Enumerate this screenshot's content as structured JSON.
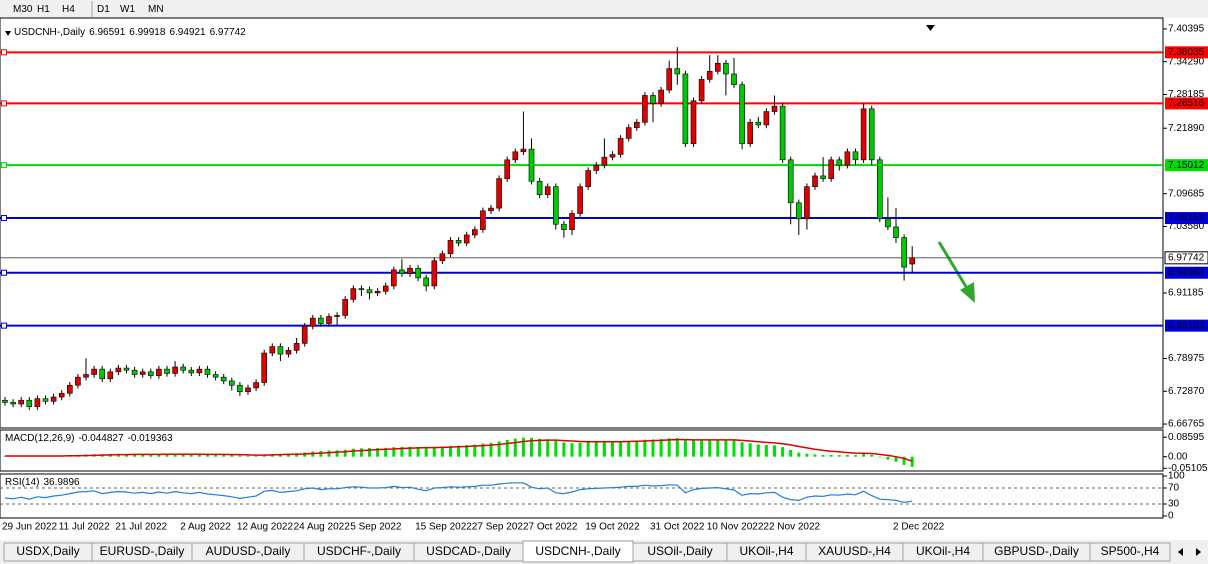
{
  "toolbar": [
    "M30",
    "H1",
    "H4",
    "D1",
    "W1",
    "MN"
  ],
  "tabs": [
    "USDX,Daily",
    "EURUSD-,Daily",
    "AUDUSD-,Daily",
    "USDCHF-,Daily",
    "USDCAD-,Daily",
    "USDCNH-,Daily",
    "USOil-,Daily",
    "UKOil-,H4",
    "XAUUSD-,H4",
    "UKOil-,H4",
    "GBPUSD-,Daily",
    "SP500-,H4"
  ],
  "active_tab": 5,
  "chart_data": [
    {
      "type": "candlestick",
      "title": "USDCNH-,Daily",
      "bull_color": "#e00000",
      "bear_color": "#00c800",
      "x": [
        "29 Jun 2022",
        null,
        null,
        null,
        null,
        null,
        null,
        "11 Jul 2022",
        null,
        null,
        null,
        null,
        null,
        null,
        "21 Jul 2022",
        null,
        null,
        null,
        null,
        null,
        null,
        null,
        "2 Aug 2022",
        null,
        null,
        null,
        null,
        null,
        null,
        "12 Aug 2022",
        null,
        null,
        null,
        null,
        null,
        null,
        "24 Aug 2022",
        null,
        null,
        null,
        null,
        null,
        null,
        "5 Sep 2022",
        null,
        null,
        null,
        null,
        null,
        null,
        null,
        "15 Sep 2022",
        null,
        null,
        null,
        null,
        null,
        null,
        "27 Sep 2022",
        null,
        null,
        null,
        null,
        null,
        null,
        "7 Oct 2022",
        null,
        null,
        null,
        null,
        null,
        null,
        "19 Oct 2022",
        null,
        null,
        null,
        null,
        null,
        null,
        null,
        "31 Oct 2022",
        null,
        null,
        null,
        null,
        null,
        null,
        "10 Nov 2022",
        null,
        null,
        null,
        null,
        null,
        null,
        "22 Nov 2022",
        null,
        null,
        null,
        null,
        null,
        null,
        null,
        null,
        null,
        null,
        null,
        null,
        null,
        null,
        null,
        "2 Dec 2022",
        null,
        null
      ],
      "open": [
        6.712,
        6.708,
        6.705,
        6.712,
        6.7,
        6.715,
        6.71,
        6.718,
        6.725,
        6.74,
        6.755,
        6.76,
        6.77,
        6.752,
        6.765,
        6.772,
        6.768,
        6.76,
        6.765,
        6.758,
        6.77,
        6.762,
        6.774,
        6.768,
        6.763,
        6.77,
        6.76,
        6.755,
        6.748,
        6.74,
        6.728,
        6.735,
        6.745,
        6.8,
        6.812,
        6.798,
        6.805,
        6.818,
        6.85,
        6.865,
        6.855,
        6.868,
        6.87,
        6.9,
        6.92,
        6.918,
        6.912,
        6.915,
        6.925,
        6.955,
        6.948,
        6.958,
        6.94,
        6.925,
        6.972,
        6.985,
        7.01,
        7.005,
        7.02,
        7.03,
        7.065,
        7.07,
        7.125,
        7.16,
        7.175,
        7.18,
        7.12,
        7.095,
        7.11,
        7.04,
        7.03,
        7.06,
        7.11,
        7.14,
        7.15,
        7.165,
        7.17,
        7.2,
        7.22,
        7.23,
        7.28,
        7.265,
        7.29,
        7.33,
        7.32,
        7.19,
        7.27,
        7.31,
        7.325,
        7.34,
        7.32,
        7.3,
        7.19,
        7.23,
        7.225,
        7.25,
        7.26,
        7.16,
        7.08,
        7.05,
        7.11,
        7.13,
        7.125,
        7.16,
        7.15,
        7.175,
        7.16,
        7.255,
        7.16,
        7.05,
        7.035,
        7.015,
        6.96591
      ],
      "high": [
        6.718,
        6.714,
        6.718,
        6.718,
        6.721,
        6.721,
        6.724,
        6.731,
        6.746,
        6.761,
        6.79,
        6.776,
        6.776,
        6.771,
        6.778,
        6.778,
        6.774,
        6.771,
        6.771,
        6.776,
        6.776,
        6.785,
        6.78,
        6.774,
        6.776,
        6.776,
        6.766,
        6.761,
        6.754,
        6.746,
        6.741,
        6.751,
        6.806,
        6.818,
        6.818,
        6.811,
        6.828,
        6.856,
        6.871,
        6.871,
        6.874,
        6.876,
        6.906,
        6.926,
        6.926,
        6.924,
        6.921,
        6.931,
        6.961,
        6.975,
        6.964,
        6.964,
        6.946,
        6.978,
        6.991,
        7.016,
        7.016,
        7.026,
        7.036,
        7.071,
        7.076,
        7.131,
        7.166,
        7.181,
        7.25,
        7.2,
        7.126,
        7.116,
        7.116,
        7.046,
        7.066,
        7.116,
        7.146,
        7.156,
        7.2,
        7.176,
        7.206,
        7.226,
        7.236,
        7.286,
        7.286,
        7.296,
        7.345,
        7.37,
        7.326,
        7.276,
        7.316,
        7.355,
        7.355,
        7.346,
        7.35,
        7.306,
        7.236,
        7.24,
        7.256,
        7.28,
        7.266,
        7.166,
        7.086,
        7.116,
        7.136,
        7.165,
        7.166,
        7.166,
        7.181,
        7.181,
        7.265,
        7.261,
        7.166,
        7.09,
        7.07,
        7.021,
        6.99918
      ],
      "low": [
        6.702,
        6.699,
        6.699,
        6.694,
        6.694,
        6.704,
        6.704,
        6.712,
        6.719,
        6.734,
        6.749,
        6.754,
        6.746,
        6.746,
        6.759,
        6.762,
        6.754,
        6.754,
        6.752,
        6.752,
        6.756,
        6.756,
        6.762,
        6.757,
        6.757,
        6.754,
        6.749,
        6.742,
        6.73,
        6.72,
        6.722,
        6.729,
        6.739,
        6.794,
        6.785,
        6.792,
        6.799,
        6.812,
        6.844,
        6.849,
        6.849,
        6.85,
        6.864,
        6.894,
        6.906,
        6.9,
        6.906,
        6.909,
        6.919,
        6.942,
        6.942,
        6.934,
        6.915,
        6.919,
        6.966,
        6.979,
        6.999,
        6.999,
        7.014,
        7.024,
        7.059,
        7.064,
        7.119,
        7.154,
        7.169,
        7.114,
        7.089,
        7.089,
        7.03,
        7.015,
        7.02,
        7.054,
        7.104,
        7.134,
        7.144,
        7.159,
        7.164,
        7.194,
        7.214,
        7.224,
        7.23,
        7.259,
        7.284,
        7.3,
        7.184,
        7.184,
        7.264,
        7.304,
        7.319,
        7.28,
        7.294,
        7.18,
        7.184,
        7.219,
        7.219,
        7.244,
        7.154,
        7.04,
        7.02,
        7.03,
        7.104,
        7.119,
        7.119,
        7.14,
        7.144,
        7.15,
        7.154,
        7.15,
        7.044,
        7.029,
        7.005,
        6.935,
        6.94921
      ],
      "close": [
        6.708,
        6.705,
        6.712,
        6.7,
        6.715,
        6.71,
        6.718,
        6.725,
        6.74,
        6.755,
        6.76,
        6.77,
        6.752,
        6.765,
        6.772,
        6.768,
        6.76,
        6.765,
        6.758,
        6.77,
        6.762,
        6.774,
        6.768,
        6.763,
        6.77,
        6.76,
        6.755,
        6.748,
        6.74,
        6.728,
        6.735,
        6.745,
        6.8,
        6.812,
        6.798,
        6.805,
        6.818,
        6.85,
        6.865,
        6.855,
        6.868,
        6.87,
        6.9,
        6.92,
        6.918,
        6.912,
        6.915,
        6.925,
        6.955,
        6.948,
        6.958,
        6.94,
        6.925,
        6.972,
        6.985,
        7.01,
        7.005,
        7.02,
        7.03,
        7.065,
        7.07,
        7.125,
        7.16,
        7.175,
        7.18,
        7.12,
        7.095,
        7.11,
        7.04,
        7.03,
        7.06,
        7.11,
        7.14,
        7.15,
        7.165,
        7.17,
        7.2,
        7.22,
        7.23,
        7.28,
        7.265,
        7.29,
        7.33,
        7.32,
        7.19,
        7.27,
        7.31,
        7.325,
        7.34,
        7.32,
        7.3,
        7.19,
        7.23,
        7.225,
        7.25,
        7.26,
        7.16,
        7.08,
        7.05,
        7.11,
        7.13,
        7.125,
        7.16,
        7.15,
        7.175,
        7.16,
        7.255,
        7.16,
        7.05,
        7.035,
        7.015,
        6.96,
        6.97742
      ],
      "ylim": [
        6.6603,
        7.4243
      ],
      "yticks": [
        7.40395,
        {
          "value": 7.3429,
          "label": "7.34290"
        },
        7.28185,
        {
          "value": 7.2189,
          "label": "7.21890"
        },
        7.09685,
        {
          "value": 7.0358,
          "label": "7.03580"
        },
        6.91185,
        6.78975,
        {
          "value": 6.7287,
          "label": "6.72870"
        },
        6.66765
      ],
      "levels": [
        {
          "value": 7.36035,
          "color": "#ff0000"
        },
        {
          "value": 7.26516,
          "color": "#ff0000"
        },
        {
          "value": 7.15012,
          "color": "#00dd00"
        },
        {
          "value": 7.05152,
          "color": "#0000dd"
        },
        {
          "value": 6.94963,
          "color": "#0000dd"
        },
        {
          "value": 6.85103,
          "color": "#0000dd"
        }
      ]
    },
    {
      "type": "macd",
      "title": "MACD(12,26,9)",
      "color": "#00e000",
      "signal_color": "#e00000",
      "values": [
        0.002,
        0.002,
        0.003,
        0.002,
        0.003,
        0.003,
        0.004,
        0.005,
        0.006,
        0.008,
        0.01,
        0.011,
        0.011,
        0.012,
        0.012,
        0.012,
        0.011,
        0.011,
        0.011,
        0.011,
        0.011,
        0.011,
        0.011,
        0.01,
        0.01,
        0.01,
        0.009,
        0.008,
        0.007,
        0.005,
        0.004,
        0.004,
        0.008,
        0.011,
        0.012,
        0.013,
        0.015,
        0.019,
        0.023,
        0.025,
        0.027,
        0.028,
        0.031,
        0.035,
        0.037,
        0.038,
        0.038,
        0.039,
        0.042,
        0.043,
        0.044,
        0.043,
        0.041,
        0.043,
        0.045,
        0.048,
        0.049,
        0.051,
        0.053,
        0.058,
        0.061,
        0.067,
        0.074,
        0.08,
        0.084,
        0.083,
        0.079,
        0.077,
        0.07,
        0.063,
        0.06,
        0.061,
        0.063,
        0.064,
        0.066,
        0.066,
        0.068,
        0.07,
        0.071,
        0.075,
        0.076,
        0.078,
        0.081,
        0.082,
        0.073,
        0.072,
        0.073,
        0.074,
        0.076,
        0.075,
        0.073,
        0.064,
        0.059,
        0.054,
        0.052,
        0.05,
        0.042,
        0.03,
        0.018,
        0.013,
        0.01,
        0.008,
        0.008,
        0.007,
        0.008,
        0.007,
        0.013,
        0.008,
        -0.003,
        -0.013,
        -0.022,
        -0.036,
        -0.044827
      ],
      "signal": [
        0.003,
        0.003,
        0.003,
        0.003,
        0.003,
        0.003,
        0.003,
        0.003,
        0.004,
        0.004,
        0.005,
        0.006,
        0.007,
        0.008,
        0.009,
        0.009,
        0.01,
        0.01,
        0.01,
        0.01,
        0.011,
        0.011,
        0.011,
        0.011,
        0.011,
        0.01,
        0.01,
        0.01,
        0.009,
        0.009,
        0.008,
        0.007,
        0.007,
        0.008,
        0.009,
        0.01,
        0.011,
        0.012,
        0.014,
        0.016,
        0.018,
        0.02,
        0.022,
        0.025,
        0.027,
        0.029,
        0.031,
        0.033,
        0.034,
        0.036,
        0.038,
        0.039,
        0.04,
        0.04,
        0.041,
        0.042,
        0.044,
        0.045,
        0.047,
        0.049,
        0.051,
        0.054,
        0.058,
        0.062,
        0.067,
        0.07,
        0.072,
        0.073,
        0.073,
        0.071,
        0.069,
        0.067,
        0.066,
        0.066,
        0.066,
        0.066,
        0.066,
        0.067,
        0.068,
        0.069,
        0.071,
        0.072,
        0.074,
        0.075,
        0.075,
        0.074,
        0.074,
        0.074,
        0.074,
        0.074,
        0.074,
        0.072,
        0.069,
        0.066,
        0.063,
        0.061,
        0.057,
        0.052,
        0.045,
        0.039,
        0.033,
        0.028,
        0.024,
        0.021,
        0.018,
        0.016,
        0.015,
        0.014,
        0.01,
        0.006,
        0.0,
        -0.008,
        -0.019363
      ],
      "ylim": [
        -0.063,
        0.1176
      ],
      "yticks": [
        0.08595,
        {
          "value": 0,
          "label": "0.00"
        },
        -0.051055
      ]
    },
    {
      "type": "line",
      "title": "RSI(14)",
      "color": "#1e7fe0",
      "values": [
        45,
        43,
        47,
        42,
        48,
        46,
        50,
        52,
        56,
        60,
        61,
        63,
        56,
        59,
        61,
        60,
        57,
        59,
        56,
        60,
        57,
        61,
        58,
        56,
        59,
        55,
        53,
        51,
        48,
        44,
        47,
        50,
        62,
        64,
        59,
        61,
        63,
        68,
        70,
        66,
        68,
        68,
        71,
        73,
        72,
        70,
        70,
        71,
        74,
        71,
        72,
        67,
        63,
        70,
        71,
        73,
        72,
        73,
        74,
        77,
        77,
        80,
        82,
        83,
        83,
        72,
        68,
        70,
        58,
        56,
        60,
        66,
        68,
        69,
        70,
        71,
        72,
        74,
        74,
        77,
        75,
        76,
        78,
        77,
        58,
        66,
        69,
        70,
        71,
        68,
        65,
        52,
        56,
        55,
        58,
        59,
        47,
        41,
        39,
        47,
        50,
        49,
        53,
        52,
        55,
        53,
        62,
        51,
        42,
        41,
        39,
        34,
        36.9896
      ],
      "ylim": [
        0,
        100
      ],
      "yticks": [
        100,
        70,
        30,
        0
      ]
    }
  ]
}
